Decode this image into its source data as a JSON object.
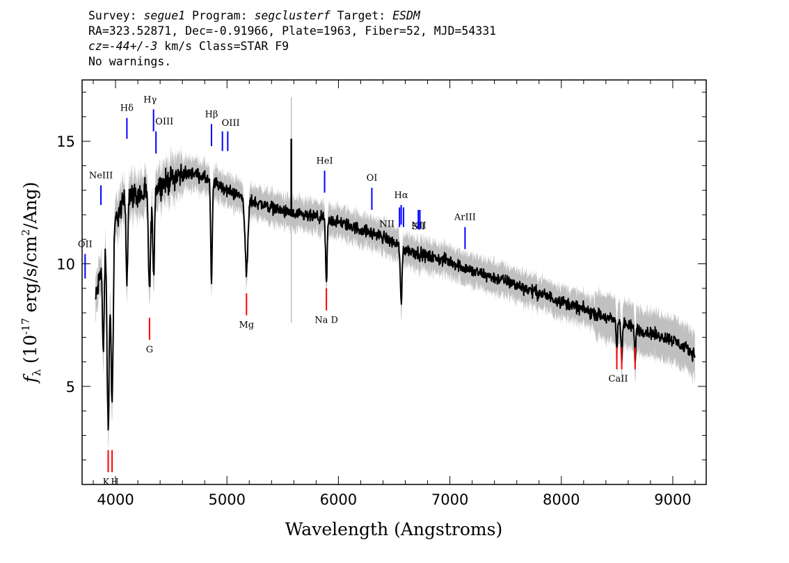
{
  "header": {
    "line1_a": "Survey: ",
    "line1_survey": "segue1",
    "line1_b": " Program: ",
    "line1_program": "segclusterf",
    "line1_c": " Target: ",
    "line1_target": "ESDM",
    "line2": "RA=323.52871, Dec=-0.91966, Plate=1963, Fiber=52, MJD=54331",
    "line3_cz": "cz=-44+/-3",
    "line3_rest": " km/s Class=STAR F9",
    "line4": "No warnings."
  },
  "chart_data": {
    "type": "line",
    "xlabel": "Wavelength (Angstroms)",
    "ylabel": "f_λ (10^-17 erg/s/cm^2/Ang)",
    "xlim": [
      3700,
      9300
    ],
    "ylim": [
      1,
      17.5
    ],
    "xticks": [
      4000,
      5000,
      6000,
      7000,
      8000,
      9000
    ],
    "yticks": [
      5,
      10,
      15
    ],
    "colors": {
      "flux": "#000000",
      "error": "#c0c0c0",
      "emission": "#0000ff",
      "absorption": "#ff0000"
    },
    "continuum_anchors": {
      "x": [
        3820,
        3900,
        4000,
        4100,
        4250,
        4400,
        4550,
        4700,
        4850,
        5000,
        5200,
        5400,
        5600,
        5800,
        6000,
        6200,
        6400,
        6600,
        6800,
        7000,
        7200,
        7500,
        7800,
        8100,
        8400,
        8700,
        9000,
        9200
      ],
      "y": [
        8.5,
        10.5,
        11.8,
        12.8,
        12.8,
        13.2,
        13.6,
        13.7,
        13.4,
        13.0,
        12.6,
        12.3,
        12.0,
        11.9,
        11.7,
        11.4,
        11.1,
        10.6,
        10.3,
        10.1,
        9.7,
        9.3,
        8.8,
        8.3,
        7.8,
        7.3,
        6.9,
        6.3
      ]
    },
    "absorption_features": [
      {
        "x": 3934,
        "depth": 7.5,
        "width": 14
      },
      {
        "x": 3969,
        "depth": 7.0,
        "width": 14
      },
      {
        "x": 3890,
        "depth": 4.0,
        "width": 10
      },
      {
        "x": 4102,
        "depth": 3.5,
        "width": 10
      },
      {
        "x": 4305,
        "depth": 4.0,
        "width": 14
      },
      {
        "x": 4341,
        "depth": 3.8,
        "width": 10
      },
      {
        "x": 4861,
        "depth": 4.2,
        "width": 10
      },
      {
        "x": 5175,
        "depth": 3.0,
        "width": 18
      },
      {
        "x": 5892,
        "depth": 2.6,
        "width": 10
      },
      {
        "x": 6563,
        "depth": 2.4,
        "width": 10
      },
      {
        "x": 8498,
        "depth": 1.0,
        "width": 8
      },
      {
        "x": 8542,
        "depth": 1.4,
        "width": 8
      },
      {
        "x": 8662,
        "depth": 1.2,
        "width": 8
      }
    ],
    "spike": {
      "x": 5577,
      "y_top": 15.1,
      "err_top": 16.8,
      "err_bottom": 7.6
    },
    "emission_lines": [
      {
        "label": "OII",
        "x": 3727,
        "y0": 9.4,
        "y1": 10.4
      },
      {
        "label": "Hδ",
        "x": 4102,
        "y0": 15.1,
        "y1": 15.95
      },
      {
        "label": "Hγ",
        "x": 4341,
        "y0": 15.4,
        "y1": 16.3
      },
      {
        "label": "OIII",
        "x": 4363,
        "y0": 14.5,
        "y1": 15.4
      },
      {
        "label": "NeIII",
        "x": 3869,
        "y0": 12.4,
        "y1": 13.2
      },
      {
        "label": "Hβ",
        "x": 4861,
        "y0": 14.8,
        "y1": 15.7
      },
      {
        "label": "OIII",
        "x": 4959,
        "y0": 14.6,
        "y1": 15.4
      },
      {
        "label": "",
        "x": 5007,
        "y0": 14.6,
        "y1": 15.4
      },
      {
        "label": "HeI",
        "x": 5876,
        "y0": 12.9,
        "y1": 13.8
      },
      {
        "label": "OI",
        "x": 6300,
        "y0": 12.2,
        "y1": 13.1
      },
      {
        "label": "NII",
        "x": 6548,
        "y0": 11.5,
        "y1": 12.3
      },
      {
        "label": "Hα",
        "x": 6563,
        "y0": 11.6,
        "y1": 12.4
      },
      {
        "label": "NII",
        "x": 6584,
        "y0": 11.5,
        "y1": 12.3
      },
      {
        "label": "SII",
        "x": 6717,
        "y0": 11.4,
        "y1": 12.2
      },
      {
        "label": "",
        "x": 6731,
        "y0": 11.4,
        "y1": 12.2
      },
      {
        "label": "ArIII",
        "x": 7136,
        "y0": 10.6,
        "y1": 11.5
      }
    ],
    "absorption_lines": [
      {
        "label": "K",
        "x": 3934,
        "y0": 1.5,
        "y1": 2.4
      },
      {
        "label": "H",
        "x": 3969,
        "y0": 1.5,
        "y1": 2.4
      },
      {
        "label": "G",
        "x": 4305,
        "y0": 6.9,
        "y1": 7.8
      },
      {
        "label": "Mg",
        "x": 5175,
        "y0": 7.9,
        "y1": 8.8
      },
      {
        "label": "Na D",
        "x": 5892,
        "y0": 8.1,
        "y1": 9.0
      },
      {
        "label": "CaII",
        "x": 8498,
        "y0": 5.7,
        "y1": 6.6
      },
      {
        "label": "",
        "x": 8542,
        "y0": 5.7,
        "y1": 6.6
      },
      {
        "label": "",
        "x": 8662,
        "y0": 5.7,
        "y1": 6.6
      }
    ]
  }
}
